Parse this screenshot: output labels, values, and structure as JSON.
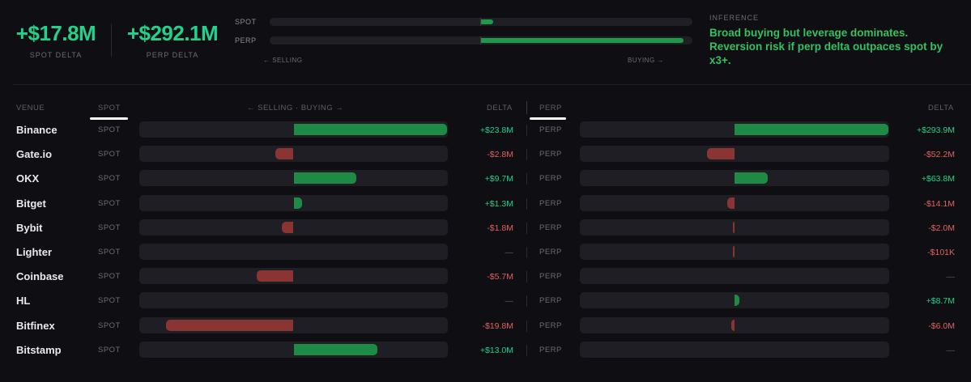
{
  "summary": {
    "spot_delta": {
      "value": "+$17.8M",
      "label": "SPOT DELTA"
    },
    "perp_delta": {
      "value": "+$292.1M",
      "label": "PERP DELTA"
    },
    "bars": [
      {
        "label": "SPOT",
        "fraction": 0.061
      },
      {
        "label": "PERP",
        "fraction": 1.0
      }
    ],
    "axis_left": "← SELLING",
    "axis_right": "BUYING →"
  },
  "inference": {
    "title": "INFERENCE",
    "text": "Broad buying but leverage dominates. Reversion risk if perp delta outpaces spot by x3+."
  },
  "table": {
    "headers": {
      "venue": "VENUE",
      "spot_tab": "SPOT",
      "axis": "← SELLING · BUYING →",
      "delta_spot": "DELTA",
      "perp_tab": "PERP",
      "delta_perp": "DELTA"
    },
    "spot_tag": "SPOT",
    "perp_tag": "PERP",
    "spot_scale": 23.8,
    "perp_scale": 293.9,
    "rows": [
      {
        "venue": "Binance",
        "spot": 23.8,
        "spot_label": "+$23.8M",
        "perp": 293.9,
        "perp_label": "+$293.9M"
      },
      {
        "venue": "Gate.io",
        "spot": -2.8,
        "spot_label": "-$2.8M",
        "perp": -52.2,
        "perp_label": "-$52.2M"
      },
      {
        "venue": "OKX",
        "spot": 9.7,
        "spot_label": "+$9.7M",
        "perp": 63.8,
        "perp_label": "+$63.8M"
      },
      {
        "venue": "Bitget",
        "spot": 1.3,
        "spot_label": "+$1.3M",
        "perp": -14.1,
        "perp_label": "-$14.1M"
      },
      {
        "venue": "Bybit",
        "spot": -1.8,
        "spot_label": "-$1.8M",
        "perp": -2.0,
        "perp_label": "-$2.0M"
      },
      {
        "venue": "Lighter",
        "spot": null,
        "spot_label": "—",
        "perp": -0.101,
        "perp_label": "-$101K"
      },
      {
        "venue": "Coinbase",
        "spot": -5.7,
        "spot_label": "-$5.7M",
        "perp": null,
        "perp_label": "—"
      },
      {
        "venue": "HL",
        "spot": null,
        "spot_label": "—",
        "perp": 8.7,
        "perp_label": "+$8.7M"
      },
      {
        "venue": "Bitfinex",
        "spot": -19.8,
        "spot_label": "-$19.8M",
        "perp": -6.0,
        "perp_label": "-$6.0M"
      },
      {
        "venue": "Bitstamp",
        "spot": 13.0,
        "spot_label": "+$13.0M",
        "perp": null,
        "perp_label": "—"
      }
    ]
  },
  "colors": {
    "positive": "#22d18b",
    "negative": "#e0605e",
    "bar_positive": "#1f8a44",
    "bar_negative": "#8a3434",
    "inference": "#34c060"
  }
}
